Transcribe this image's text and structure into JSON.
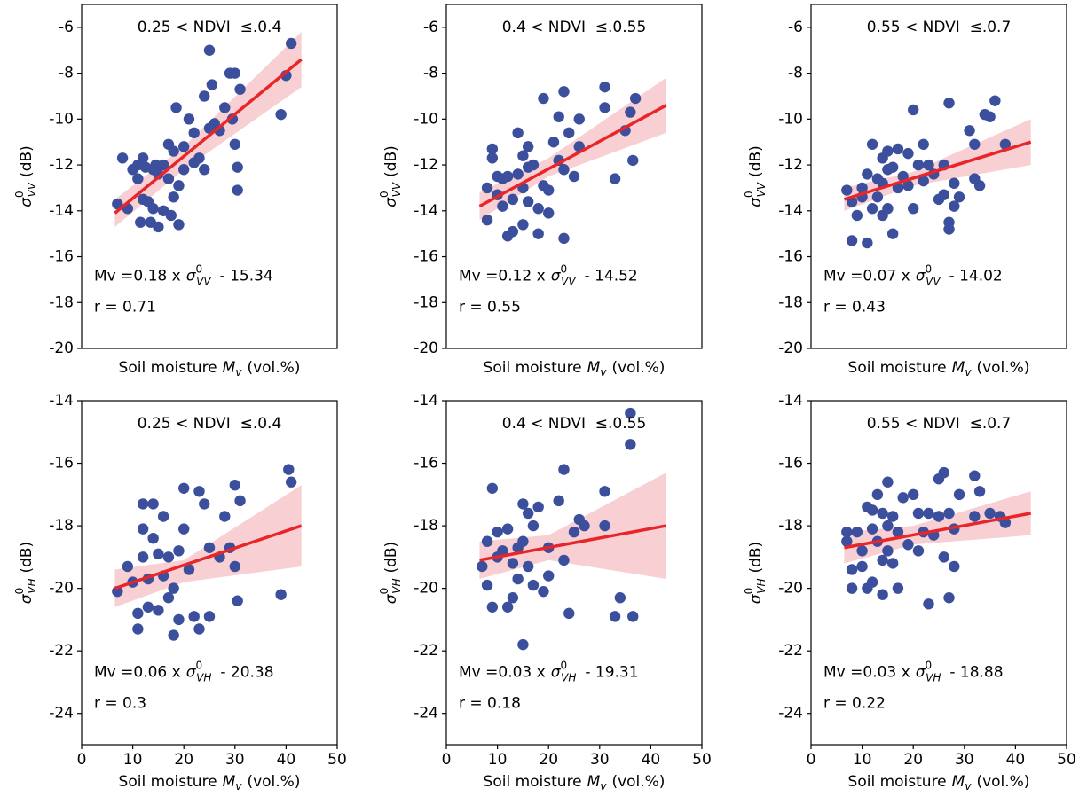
{
  "chart_data": [
    {
      "type": "scatter",
      "title": "0.25 < NDVI  ≤.0.4",
      "ylabel": {
        "symbol": "σ",
        "sup": "0",
        "sub": "VV",
        "unit": "(dB)"
      },
      "xlabel": {
        "lead": "Soil moisture",
        "symbol": "M",
        "sub": "v",
        "unit": "(vol.%)"
      },
      "equation": {
        "lead": "Mv =0.18 x",
        "symbol": "σ",
        "sup": "0",
        "sub": "VV",
        "tail": "- 15.34"
      },
      "r": "r = 0.71",
      "xlim": [
        0,
        50
      ],
      "ylim": [
        -20,
        -5
      ],
      "yticks": [
        -20,
        -18,
        -16,
        -14,
        -12,
        -10,
        -8,
        -6
      ],
      "color": "#3b4f9d",
      "x": [
        7,
        8,
        9,
        10,
        11,
        11,
        11.5,
        12,
        12,
        12.5,
        13,
        13.5,
        14,
        14,
        14.5,
        15,
        15,
        16,
        16,
        17,
        17,
        17.5,
        18,
        18,
        18.5,
        19,
        19,
        20,
        20,
        21,
        22,
        22,
        23,
        24,
        24,
        25,
        25,
        25.5,
        26,
        27,
        28,
        29,
        29.5,
        30,
        30,
        30.5,
        30.5,
        31,
        39,
        40,
        41
      ],
      "values": [
        -13.7,
        -11.7,
        -13.9,
        -12.2,
        -12.0,
        -12.6,
        -14.5,
        -11.7,
        -13.5,
        -12.1,
        -13.6,
        -14.5,
        -12.2,
        -13.9,
        -12.0,
        -14.7,
        -12.4,
        -14.0,
        -12.0,
        -11.1,
        -12.6,
        -14.2,
        -11.4,
        -13.4,
        -9.5,
        -12.9,
        -14.6,
        -11.2,
        -12.2,
        -10.0,
        -10.6,
        -11.9,
        -11.7,
        -9.0,
        -12.2,
        -7.0,
        -10.4,
        -8.5,
        -10.2,
        -10.5,
        -9.5,
        -8.0,
        -10.0,
        -11.1,
        -8.0,
        -12.1,
        -13.1,
        -8.7,
        -9.8,
        -8.1,
        -6.7
      ],
      "fit": {
        "x": [
          6.5,
          43
        ],
        "y": [
          -14.1,
          -7.4
        ],
        "color": "#e8262a"
      },
      "band": {
        "x": [
          6.5,
          20,
          43
        ],
        "upper": [
          -13.5,
          -11.2,
          -6.2
        ],
        "lower": [
          -14.7,
          -12.2,
          -8.6
        ],
        "color": "#f6c3c7"
      }
    },
    {
      "type": "scatter",
      "title": "0.4 < NDVI  ≤.0.55",
      "ylabel": {
        "symbol": "σ",
        "sup": "0",
        "sub": "VV",
        "unit": "(dB)"
      },
      "xlabel": {
        "lead": "Soil moisture",
        "symbol": "M",
        "sub": "v",
        "unit": "(vol.%)"
      },
      "equation": {
        "lead": "Mv =0.12 x",
        "symbol": "σ",
        "sup": "0",
        "sub": "VV",
        "tail": "- 14.52"
      },
      "r": "r = 0.55",
      "xlim": [
        0,
        50
      ],
      "ylim": [
        -20,
        -5
      ],
      "yticks": [
        -20,
        -18,
        -16,
        -14,
        -12,
        -10,
        -8,
        -6
      ],
      "color": "#3b4f9d",
      "x": [
        8,
        8,
        9,
        9,
        10,
        10,
        11,
        11,
        12,
        12,
        13,
        13,
        14,
        14,
        15,
        15,
        15,
        16,
        16,
        16,
        17,
        18,
        18,
        19,
        19,
        20,
        20,
        21,
        22,
        22,
        23,
        23,
        24,
        25,
        26,
        26,
        23,
        31,
        31,
        33,
        35,
        36,
        36.5,
        37
      ],
      "values": [
        -14.4,
        -13.0,
        -11.7,
        -11.3,
        -12.5,
        -13.3,
        -12.6,
        -13.8,
        -15.1,
        -12.5,
        -13.5,
        -14.9,
        -10.6,
        -12.4,
        -11.6,
        -13.0,
        -14.6,
        -11.2,
        -12.1,
        -13.6,
        -12.0,
        -13.9,
        -15.0,
        -9.1,
        -12.9,
        -14.1,
        -13.1,
        -11.0,
        -9.9,
        -11.8,
        -8.8,
        -12.2,
        -10.6,
        -12.5,
        -10.0,
        -11.2,
        -15.2,
        -9.5,
        -8.6,
        -12.6,
        -10.5,
        -9.7,
        -11.8,
        -9.1
      ],
      "fit": {
        "x": [
          6.5,
          43
        ],
        "y": [
          -13.8,
          -9.4
        ],
        "color": "#e8262a"
      },
      "band": {
        "x": [
          6.5,
          20,
          43
        ],
        "upper": [
          -13.2,
          -11.7,
          -8.2
        ],
        "lower": [
          -14.4,
          -12.5,
          -10.6
        ],
        "color": "#f6c3c7"
      }
    },
    {
      "type": "scatter",
      "title": "0.55 < NDVI  ≤.0.7",
      "ylabel": {
        "symbol": "σ",
        "sup": "0",
        "sub": "VV",
        "unit": "(dB)"
      },
      "xlabel": {
        "lead": "Soil moisture",
        "symbol": "M",
        "sub": "v",
        "unit": "(vol.%)"
      },
      "equation": {
        "lead": "Mv =0.07 x",
        "symbol": "σ",
        "sup": "0",
        "sub": "VV",
        "tail": "- 14.02"
      },
      "r": "r = 0.43",
      "xlim": [
        0,
        50
      ],
      "ylim": [
        -20,
        -5
      ],
      "yticks": [
        -20,
        -18,
        -16,
        -14,
        -12,
        -10,
        -8,
        -6
      ],
      "color": "#3b4f9d",
      "x": [
        7,
        8,
        8,
        9,
        10,
        10,
        11,
        11,
        12,
        12,
        13,
        13,
        14,
        14,
        14,
        15,
        15,
        15,
        16,
        16,
        17,
        17,
        18,
        19,
        19,
        20,
        20,
        21,
        22,
        22,
        23,
        24,
        25,
        26,
        26,
        27,
        27,
        27,
        28,
        28,
        29,
        31,
        32,
        32,
        33,
        34,
        35,
        36,
        38
      ],
      "values": [
        -13.1,
        -15.3,
        -13.6,
        -14.2,
        -13.0,
        -13.4,
        -15.4,
        -12.4,
        -11.1,
        -13.9,
        -12.6,
        -13.4,
        -11.7,
        -14.2,
        -12.8,
        -12.2,
        -11.4,
        -13.9,
        -12.1,
        -15.0,
        -11.3,
        -13.0,
        -12.5,
        -12.9,
        -11.5,
        -9.6,
        -13.9,
        -12.0,
        -12.7,
        -11.1,
        -12.0,
        -12.4,
        -13.5,
        -12.0,
        -13.3,
        -9.3,
        -14.5,
        -14.8,
        -13.8,
        -12.8,
        -13.4,
        -10.5,
        -11.1,
        -12.6,
        -12.9,
        -9.8,
        -9.9,
        -9.2,
        -11.1
      ],
      "fit": {
        "x": [
          6.5,
          43
        ],
        "y": [
          -13.5,
          -11.0
        ],
        "color": "#e8262a"
      },
      "band": {
        "x": [
          6.5,
          20,
          43
        ],
        "upper": [
          -13.0,
          -12.3,
          -10.0
        ],
        "lower": [
          -14.0,
          -12.9,
          -12.0
        ],
        "color": "#f6c3c7"
      }
    },
    {
      "type": "scatter",
      "title": "0.25 < NDVI  ≤.0.4",
      "ylabel": {
        "symbol": "σ",
        "sup": "0",
        "sub": "VH",
        "unit": "(dB)"
      },
      "xlabel": {
        "lead": "Soil moisture",
        "symbol": "M",
        "sub": "v",
        "unit": "(vol.%)"
      },
      "equation": {
        "lead": "Mv =0.06 x",
        "symbol": "σ",
        "sup": "0",
        "sub": "VH",
        "tail": "- 20.38"
      },
      "r": "r = 0.3",
      "xlim": [
        0,
        50
      ],
      "ylim": [
        -25,
        -14
      ],
      "xticks": [
        0,
        10,
        20,
        30,
        40,
        50
      ],
      "yticks": [
        -24,
        -22,
        -20,
        -18,
        -16,
        -14
      ],
      "color": "#3b4f9d",
      "x": [
        7,
        9,
        10,
        11,
        11,
        12,
        12,
        12,
        13,
        13,
        14,
        14,
        15,
        15,
        16,
        16,
        17,
        17,
        18,
        18,
        19,
        19,
        20,
        20,
        21,
        22,
        23,
        23,
        24,
        25,
        25,
        27,
        28,
        29,
        30,
        30,
        30.5,
        31,
        39,
        40.5,
        41
      ],
      "values": [
        -20.1,
        -19.3,
        -19.8,
        -20.8,
        -21.3,
        -17.3,
        -19.0,
        -18.1,
        -20.6,
        -19.7,
        -17.3,
        -18.4,
        -18.9,
        -20.7,
        -17.7,
        -19.6,
        -20.3,
        -19.0,
        -21.5,
        -20.0,
        -18.8,
        -21.0,
        -16.8,
        -18.1,
        -19.4,
        -20.9,
        -21.3,
        -16.9,
        -17.3,
        -18.7,
        -20.9,
        -19.0,
        -17.7,
        -18.7,
        -16.7,
        -19.3,
        -20.4,
        -17.2,
        -20.2,
        -16.2,
        -16.6
      ],
      "fit": {
        "x": [
          6.5,
          43
        ],
        "y": [
          -20.0,
          -18.0
        ],
        "color": "#e8262a"
      },
      "band": {
        "x": [
          6.5,
          20,
          43
        ],
        "upper": [
          -19.4,
          -19.1,
          -16.7
        ],
        "lower": [
          -20.6,
          -19.8,
          -19.3
        ],
        "color": "#f6c3c7"
      }
    },
    {
      "type": "scatter",
      "title": "0.4 < NDVI  ≤.0.55",
      "ylabel": {
        "symbol": "σ",
        "sup": "0",
        "sub": "VH",
        "unit": "(dB)"
      },
      "xlabel": {
        "lead": "Soil moisture",
        "symbol": "M",
        "sub": "v",
        "unit": "(vol.%)"
      },
      "equation": {
        "lead": "Mv =0.03 x",
        "symbol": "σ",
        "sup": "0",
        "sub": "VH",
        "tail": "- 19.31"
      },
      "r": "r = 0.18",
      "xlim": [
        0,
        50
      ],
      "ylim": [
        -25,
        -14
      ],
      "xticks": [
        0,
        10,
        20,
        30,
        40,
        50
      ],
      "yticks": [
        -24,
        -22,
        -20,
        -18,
        -16,
        -14
      ],
      "color": "#3b4f9d",
      "x": [
        7,
        8,
        8,
        9,
        9,
        10,
        10,
        11,
        12,
        12,
        13,
        13,
        14,
        14,
        15,
        15,
        15,
        16,
        16,
        17,
        17,
        18,
        19,
        20,
        20,
        22,
        23,
        23,
        24,
        25,
        26,
        27,
        31,
        31,
        33,
        34,
        36,
        36,
        36.5
      ],
      "values": [
        -19.3,
        -18.5,
        -19.9,
        -16.8,
        -20.6,
        -18.2,
        -19.0,
        -18.8,
        -20.6,
        -18.1,
        -19.2,
        -20.3,
        -18.7,
        -19.7,
        -17.3,
        -18.5,
        -21.8,
        -17.6,
        -19.3,
        -18.0,
        -19.9,
        -17.4,
        -20.1,
        -18.7,
        -19.6,
        -17.2,
        -16.2,
        -19.1,
        -20.8,
        -18.2,
        -17.8,
        -18.0,
        -16.9,
        -18.0,
        -20.9,
        -20.3,
        -14.4,
        -15.4,
        -20.9
      ],
      "fit": {
        "x": [
          6.5,
          43
        ],
        "y": [
          -19.1,
          -18.0
        ],
        "color": "#e8262a"
      },
      "band": {
        "x": [
          6.5,
          20,
          43
        ],
        "upper": [
          -18.5,
          -18.3,
          -16.3
        ],
        "lower": [
          -19.7,
          -19.1,
          -19.7
        ],
        "color": "#f6c3c7"
      }
    },
    {
      "type": "scatter",
      "title": "0.55 < NDVI  ≤.0.7",
      "ylabel": {
        "symbol": "σ",
        "sup": "0",
        "sub": "VH",
        "unit": "(dB)"
      },
      "xlabel": {
        "lead": "Soil moisture",
        "symbol": "M",
        "sub": "v",
        "unit": "(vol.%)"
      },
      "equation": {
        "lead": "Mv =0.03 x",
        "symbol": "σ",
        "sup": "0",
        "sub": "VH",
        "tail": "- 18.88"
      },
      "r": "r = 0.22",
      "xlim": [
        0,
        50
      ],
      "ylim": [
        -25,
        -14
      ],
      "xticks": [
        0,
        10,
        20,
        30,
        40,
        50
      ],
      "yticks": [
        -24,
        -22,
        -20,
        -18,
        -16,
        -14
      ],
      "color": "#3b4f9d",
      "x": [
        7,
        7,
        8,
        8,
        9,
        10,
        10,
        11,
        11,
        12,
        12,
        12,
        13,
        13,
        14,
        14,
        14,
        15,
        15,
        15,
        16,
        16,
        17,
        17,
        18,
        19,
        20,
        21,
        21,
        22,
        23,
        23,
        24,
        25,
        25,
        26,
        26,
        27,
        27,
        28,
        28,
        29,
        32,
        32,
        33,
        35,
        37,
        38
      ],
      "values": [
        -18.2,
        -18.5,
        -19.4,
        -20.0,
        -18.2,
        -18.8,
        -19.3,
        -17.4,
        -20.0,
        -17.5,
        -18.1,
        -19.8,
        -18.5,
        -17.0,
        -17.6,
        -19.1,
        -20.2,
        -16.6,
        -18.0,
        -18.8,
        -17.7,
        -19.2,
        -18.2,
        -20.0,
        -17.1,
        -18.6,
        -17.0,
        -17.6,
        -18.8,
        -18.2,
        -20.5,
        -17.6,
        -18.3,
        -16.5,
        -17.7,
        -19.0,
        -16.3,
        -20.3,
        -17.6,
        -19.3,
        -18.1,
        -17.0,
        -16.4,
        -17.7,
        -16.9,
        -17.6,
        -17.7,
        -17.9
      ],
      "fit": {
        "x": [
          6.5,
          43
        ],
        "y": [
          -18.7,
          -17.6
        ],
        "color": "#e8262a"
      },
      "band": {
        "x": [
          6.5,
          20,
          43
        ],
        "upper": [
          -18.2,
          -18.0,
          -16.9
        ],
        "lower": [
          -19.2,
          -18.6,
          -18.3
        ],
        "color": "#f6c3c7"
      }
    }
  ]
}
